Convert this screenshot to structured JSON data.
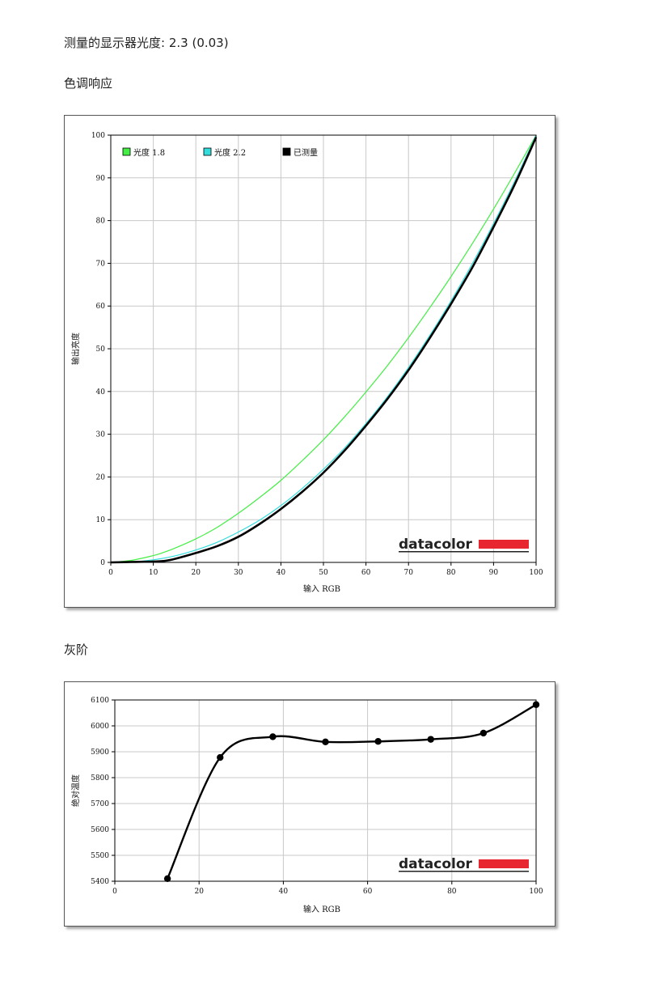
{
  "header": {
    "gamma_label": "测量的显示器光度:",
    "gamma_value": "2.3 (0.03)",
    "tone_title": "色调响应",
    "gray_title": "灰阶"
  },
  "logo_text": "datacolor",
  "logo_color": "#e8262f",
  "chart_data": [
    {
      "type": "line",
      "xlabel": "输入 RGB",
      "ylabel": "输出亮度",
      "xlim": [
        0,
        100
      ],
      "ylim": [
        0,
        100
      ],
      "xticks": [
        0,
        10,
        20,
        30,
        40,
        50,
        60,
        70,
        80,
        90,
        100
      ],
      "yticks": [
        0,
        10,
        20,
        30,
        40,
        50,
        60,
        70,
        80,
        90,
        100
      ],
      "grid": true,
      "legend_position": "top-left",
      "series": [
        {
          "name": "光度 1.8",
          "color": "#44ee44",
          "x": [
            0,
            5,
            10,
            12,
            15,
            20,
            25,
            30,
            35,
            40,
            45,
            50,
            55,
            60,
            65,
            70,
            75,
            80,
            85,
            90,
            95,
            100
          ],
          "y": [
            0,
            0.5,
            1.6,
            2.2,
            3.3,
            5.5,
            8.2,
            11.5,
            15.2,
            19.2,
            23.8,
            28.7,
            34.1,
            39.9,
            46.0,
            52.6,
            59.6,
            66.9,
            74.6,
            82.7,
            91.2,
            100
          ]
        },
        {
          "name": "光度 2.2",
          "color": "#33dddd",
          "x": [
            0,
            5,
            10,
            15,
            20,
            25,
            30,
            35,
            40,
            45,
            50,
            55,
            60,
            65,
            70,
            75,
            80,
            85,
            90,
            95,
            100
          ],
          "y": [
            0,
            0.1,
            0.6,
            1.5,
            2.9,
            4.7,
            7.1,
            9.9,
            13.3,
            17.3,
            21.8,
            26.8,
            32.5,
            38.7,
            45.6,
            53.1,
            61.2,
            69.9,
            79.3,
            89.3,
            100
          ]
        },
        {
          "name": "已测量",
          "color": "#000000",
          "x": [
            0,
            5,
            10,
            13,
            15,
            20,
            25,
            30,
            35,
            40,
            45,
            50,
            55,
            60,
            65,
            70,
            75,
            80,
            85,
            90,
            95,
            100
          ],
          "y": [
            0,
            0.1,
            0.2,
            0.4,
            0.8,
            2.2,
            3.8,
            6.0,
            9.0,
            12.5,
            16.5,
            21.0,
            26.2,
            32.0,
            38.2,
            45.0,
            52.5,
            60.5,
            69.0,
            78.5,
            88.5,
            99.5
          ]
        }
      ]
    },
    {
      "type": "line",
      "xlabel": "输入 RGB",
      "ylabel": "绝对温度",
      "xlim": [
        0,
        100
      ],
      "ylim": [
        5400,
        6100
      ],
      "xticks": [
        0,
        20,
        40,
        60,
        80,
        100
      ],
      "yticks": [
        5400,
        5500,
        5600,
        5700,
        5800,
        5900,
        6000,
        6100
      ],
      "grid": true,
      "series": [
        {
          "name": "",
          "color": "#000000",
          "x": [
            12.5,
            25,
            37.5,
            50,
            62.5,
            75,
            87.5,
            100
          ],
          "y": [
            5410,
            5878,
            5958,
            5938,
            5940,
            5948,
            5972,
            6082
          ]
        }
      ]
    }
  ]
}
